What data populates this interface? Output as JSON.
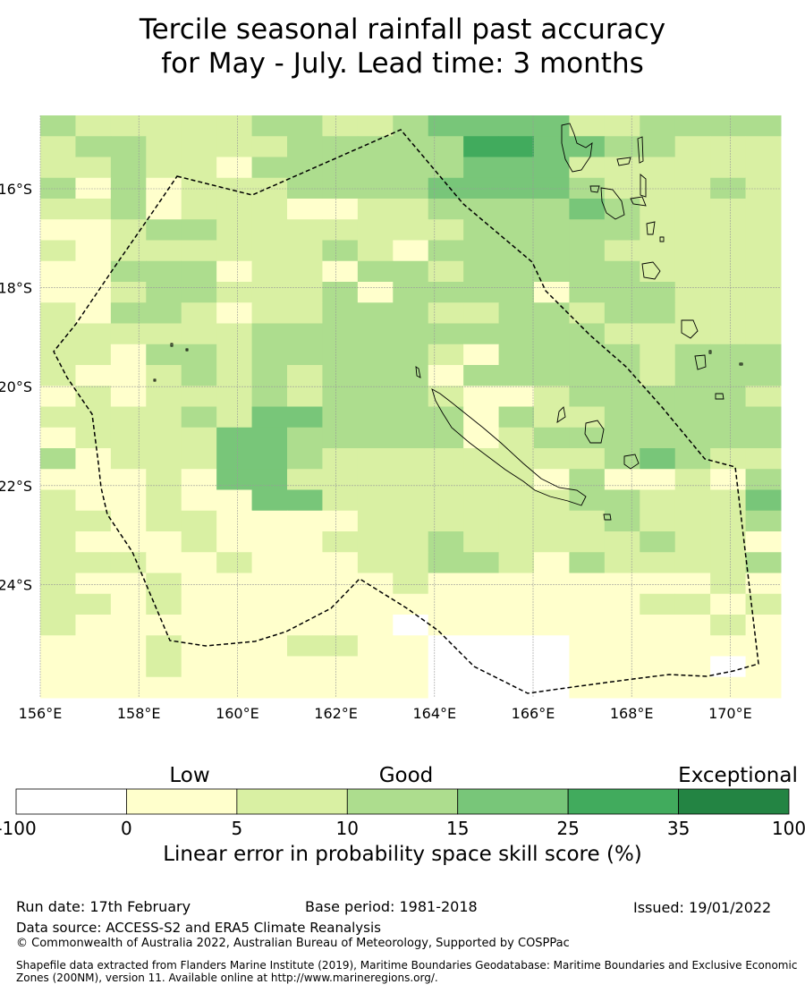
{
  "title": {
    "line1": "Tercile seasonal rainfall past accuracy",
    "line2": "for May - July. Lead time: 3 months"
  },
  "map": {
    "lon_range": [
      156,
      171.5
    ],
    "lat_range": [
      -26.3,
      -14.5
    ],
    "lon_ticks": [
      "156°E",
      "158°E",
      "160°E",
      "162°E",
      "164°E",
      "166°E",
      "168°E",
      "170°E"
    ],
    "lon_tick_values": [
      156,
      158,
      160,
      162,
      164,
      166,
      168,
      170
    ],
    "lat_ticks": [
      "16°S",
      "18°S",
      "20°S",
      "22°S",
      "24°S"
    ],
    "lat_tick_values": [
      -16,
      -18,
      -20,
      -22,
      -24
    ],
    "category_colors": [
      "#ffffff",
      "#ffffcc",
      "#d9f0a3",
      "#addd8e",
      "#78c679",
      "#41ab5d",
      "#238443"
    ],
    "grid_rows": [
      "322222332234444223333",
      "233222233333554433222",
      "223221333333444222222",
      "313122233334444322232",
      "223122211223333432222",
      "112332222222333332222",
      "212222223213333322222",
      "113331221332333332222",
      "112332223133331333222",
      "213321223332233233222",
      "222222333333333322222",
      "221332333332133332333",
      "211232323331333332333",
      "121222323332112333332",
      "222232443333132233333",
      "122224433333123333333",
      "312224432222222234322",
      "111214422222221311213",
      "211211442222222332224",
      "221221111222222232223",
      "211121112223222223221",
      "222112111223321322223",
      "211211111121111111121",
      "221211111111111112212",
      "211111111101111111121",
      "111211122110000111111",
      "111211111110000111101",
      "111111111110000111111"
    ]
  },
  "colorbar": {
    "section_labels": [
      "Low",
      "Good",
      "Exceptional"
    ],
    "tick_labels": [
      "-100",
      "0",
      "5",
      "10",
      "15",
      "25",
      "35",
      "100"
    ],
    "title": "Linear error in probability space skill score (%)"
  },
  "footer": {
    "run_date": "Run date: 17th February",
    "base_period": "Base period: 1981-2018",
    "issued": "Issued: 19/01/2022",
    "data_source": "Data source: ACCESS-S2 and ERA5 Climate Reanalysis",
    "copyright": "© Commonwealth of Australia 2022, Australian Bureau of Meteorology, Supported by COSPPac",
    "shapefile": "Shapefile data extracted from Flanders Marine Institute (2019), Maritime Boundaries Geodatabase: Maritime Boundaries and Exclusive Economic Zones (200NM), version 11. Available online at http://www.marineregions.org/."
  }
}
